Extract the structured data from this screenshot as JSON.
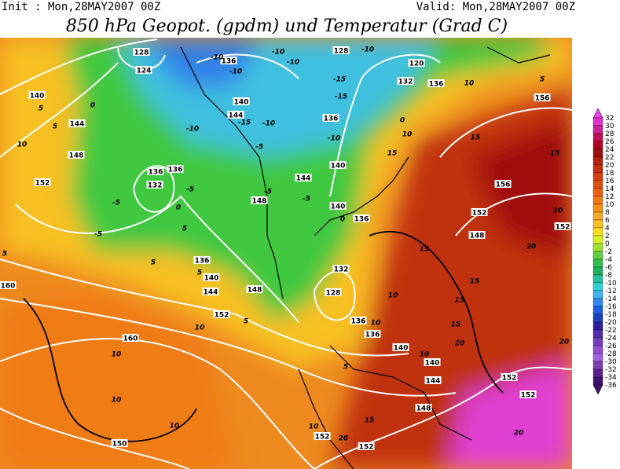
{
  "header": {
    "init": "Init : Mon,28MAY2007 00Z",
    "valid": "Valid: Mon,28MAY2007 00Z",
    "title": "850 hPa Geopot. (gpdm) und Temperatur (Grad C)"
  },
  "map": {
    "contour_labels": [
      "128",
      "124",
      "140",
      "144",
      "148",
      "152",
      "136",
      "132",
      "136",
      "140",
      "144",
      "136",
      "140",
      "144",
      "148",
      "140",
      "136",
      "132",
      "128",
      "136",
      "136",
      "140",
      "140",
      "144",
      "148",
      "152",
      "152",
      "160",
      "160",
      "150",
      "152",
      "148",
      "144",
      "140",
      "136",
      "156",
      "156",
      "152",
      "148",
      "152",
      "152",
      "152",
      "136",
      "132",
      "128",
      "136",
      "120",
      "-10",
      "-10",
      "-10",
      "-10",
      "-10",
      "-15",
      "-15",
      "-15",
      "-10",
      "-10",
      "-10",
      "-5",
      "-5",
      "-5",
      "-5",
      "-5",
      "-5",
      "0",
      "0",
      "0",
      "0",
      "5",
      "5",
      "5",
      "5",
      "5",
      "5",
      "5",
      "10",
      "10",
      "10",
      "10",
      "10",
      "10",
      "10",
      "10",
      "10",
      "10",
      "15",
      "15",
      "15",
      "15",
      "15",
      "15",
      "15",
      "15",
      "20",
      "20",
      "20",
      "20",
      "20",
      "20",
      "5",
      "10",
      "5"
    ]
  },
  "colorbar": {
    "ticks": [
      32,
      30,
      28,
      26,
      24,
      22,
      20,
      18,
      16,
      14,
      12,
      10,
      8,
      6,
      4,
      2,
      0,
      -2,
      -4,
      -6,
      -8,
      -10,
      -12,
      -14,
      -16,
      -18,
      -20,
      -22,
      -24,
      -26,
      -28,
      -30,
      -32,
      -34,
      -36
    ],
    "colors": [
      "#f040f0",
      "#e030d0",
      "#d02098",
      "#c01050",
      "#b00020",
      "#a01010",
      "#b42010",
      "#c83010",
      "#d84010",
      "#e05010",
      "#e86010",
      "#f07810",
      "#f89018",
      "#f8a820",
      "#f8c020",
      "#f8e020",
      "#d8f020",
      "#a0e030",
      "#60d040",
      "#30c050",
      "#20b060",
      "#20c0a0",
      "#30d0d0",
      "#40b0f0",
      "#3088f0",
      "#2060e0",
      "#2040c0",
      "#3020a0",
      "#5030b0",
      "#7040c0",
      "#9050d0",
      "#a060e0",
      "#8040b0",
      "#602090",
      "#401070"
    ]
  }
}
